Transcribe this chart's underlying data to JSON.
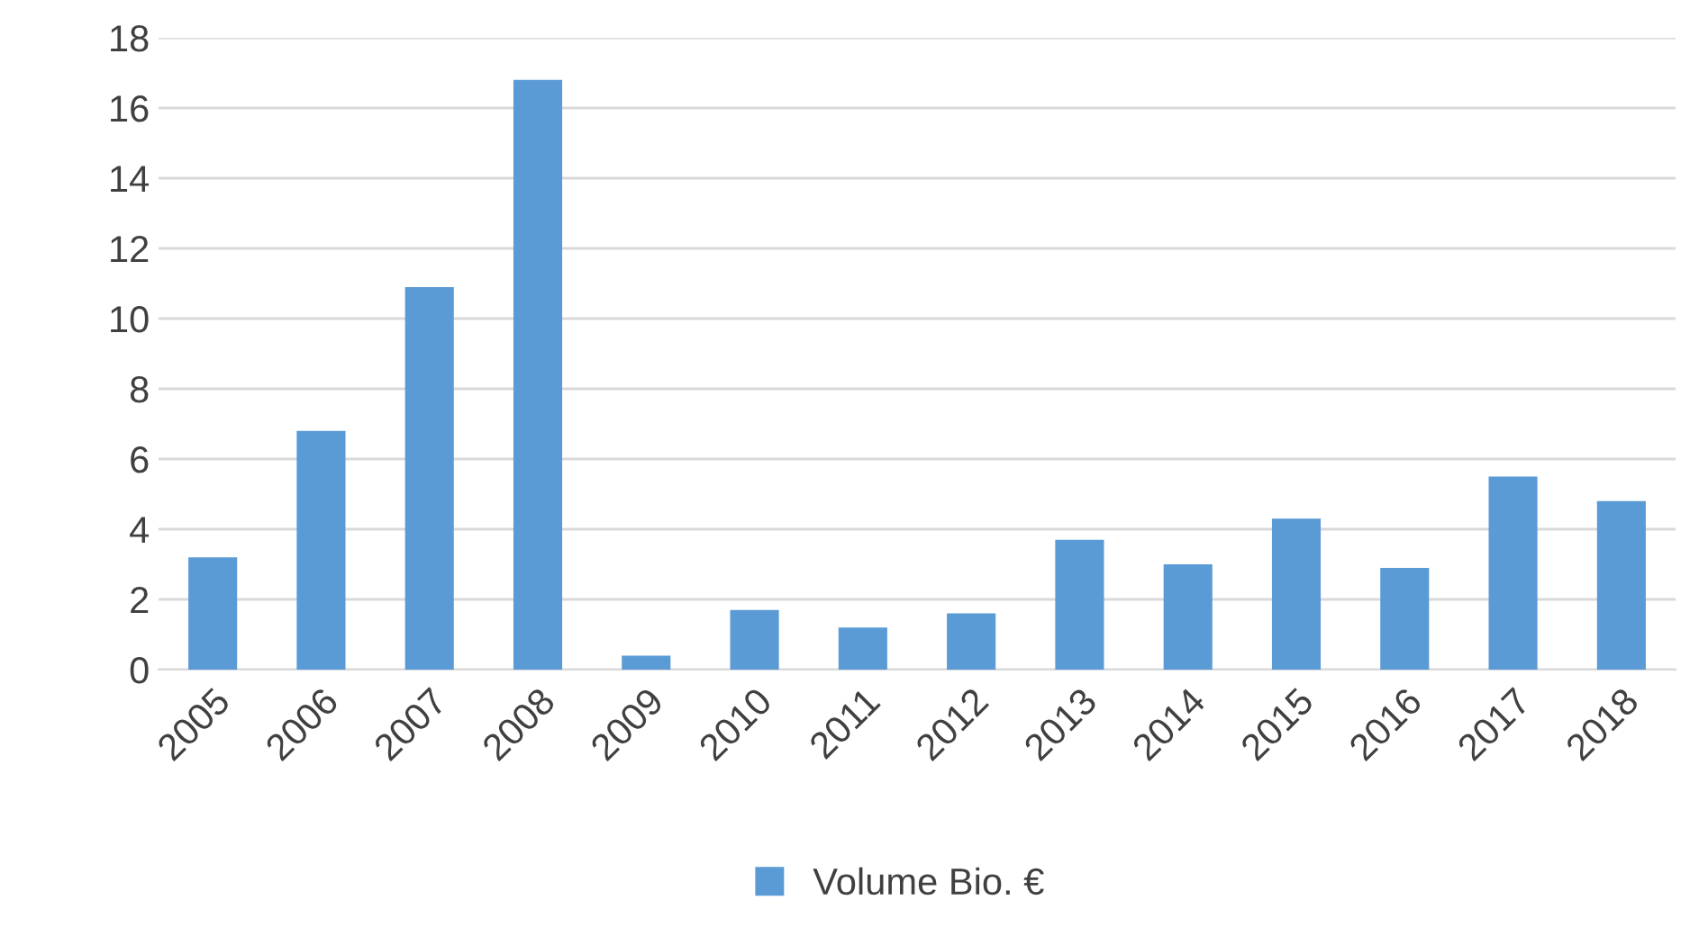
{
  "chart_data": {
    "type": "bar",
    "categories": [
      "2005",
      "2006",
      "2007",
      "2008",
      "2009",
      "2010",
      "2011",
      "2012",
      "2013",
      "2014",
      "2015",
      "2016",
      "2017",
      "2018"
    ],
    "series": [
      {
        "name": "Volume Bio. €",
        "color": "#5b9bd5",
        "values": [
          3.2,
          6.8,
          10.9,
          16.8,
          0.4,
          1.7,
          1.2,
          1.6,
          3.7,
          3.0,
          4.3,
          2.9,
          5.5,
          4.8
        ]
      }
    ],
    "ylim": [
      0,
      18
    ],
    "yticks": [
      0,
      2,
      4,
      6,
      8,
      10,
      12,
      14,
      16,
      18
    ],
    "grid": "y",
    "legend": "bottom"
  }
}
